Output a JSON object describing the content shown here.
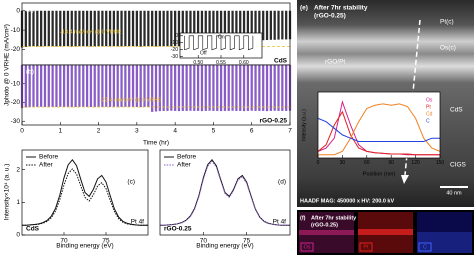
{
  "chart_data": [
    {
      "type": "bar",
      "panel": "(a)",
      "sample_label": "CdS",
      "ref_label": "-18.4 mA/cm² @ 0 VRHE",
      "hline": -18.4,
      "ylabel": "Jphoto @ 0 VRHE (mA/cm²)",
      "color": "#2a2a2a",
      "x": [
        0,
        0.1,
        0.2,
        0.3,
        0.4,
        0.5,
        0.6,
        0.7,
        0.8,
        0.9,
        1,
        1.1,
        1.2,
        1.3,
        1.4,
        1.5,
        1.6,
        1.7,
        1.8,
        1.9,
        2,
        2.1,
        2.2,
        2.3,
        2.4,
        2.5,
        2.6,
        2.7,
        2.8,
        2.9,
        3,
        3.1,
        3.2,
        3.3,
        3.4,
        3.5,
        3.6,
        3.7,
        3.8,
        3.9,
        4,
        4.1,
        4.2,
        4.3,
        4.4,
        4.5,
        4.6,
        4.7,
        4.8,
        4.9,
        5,
        5.1,
        5.2,
        5.3,
        5.4,
        5.5,
        5.6,
        5.7,
        5.8,
        5.9,
        6,
        6.1,
        6.2,
        6.3,
        6.4,
        6.5,
        6.6,
        6.7,
        6.8,
        6.9,
        7
      ],
      "values": [
        -19.0,
        -18.6,
        -18.5,
        -18.4,
        -18.5,
        -18.4,
        -18.3,
        -18.4,
        -18.5,
        -18.4,
        -18.4,
        -18.3,
        -18.4,
        -18.5,
        -18.4,
        -18.4,
        -18.3,
        -18.4,
        -18.4,
        -18.5,
        -18.4,
        -18.4,
        -18.3,
        -18.4,
        -18.4,
        -18.5,
        -18.4,
        -18.3,
        -18.4,
        -18.4,
        -18.4,
        -18.5,
        -18.4,
        -18.3,
        -18.4,
        -18.4,
        -18.4,
        -18.3,
        -18.4,
        -18.4,
        -18.3,
        -18.2,
        -18.0,
        -17.8,
        -17.6,
        -17.4,
        -17.2,
        -17.0,
        -16.8,
        -16.6,
        -16.5,
        -16.4,
        -16.3,
        -16.2,
        -16.1,
        -16.0,
        -15.9,
        -15.8,
        -15.7,
        -15.6,
        -15.5,
        -15.4,
        -15.3,
        -15.2,
        -15.1,
        -15.0,
        -15.0,
        -14.9,
        -14.8,
        -14.8,
        -14.7
      ],
      "xlim": [
        0,
        7
      ],
      "ylim": [
        -28,
        4
      ],
      "yticks": [
        0,
        -10,
        -20
      ]
    },
    {
      "type": "bar",
      "panel": "(b)",
      "sample_label": "rGO-0.25",
      "ref_label": "-22.4 mA/cm² @ 0 VRHE",
      "hline": -22.4,
      "xlabel": "Time (hr)",
      "color": "#8a5cc7",
      "x": [
        0,
        0.1,
        0.2,
        0.3,
        0.4,
        0.5,
        0.6,
        0.7,
        0.8,
        0.9,
        1,
        1.1,
        1.2,
        1.3,
        1.4,
        1.5,
        1.6,
        1.7,
        1.8,
        1.9,
        2,
        2.1,
        2.2,
        2.3,
        2.4,
        2.5,
        2.6,
        2.7,
        2.8,
        2.9,
        3,
        3.1,
        3.2,
        3.3,
        3.4,
        3.5,
        3.6,
        3.7,
        3.8,
        3.9,
        4,
        4.1,
        4.2,
        4.3,
        4.4,
        4.5,
        4.6,
        4.7,
        4.8,
        4.9,
        5,
        5.1,
        5.2,
        5.3,
        5.4,
        5.5,
        5.6,
        5.7,
        5.8,
        5.9,
        6,
        6.1,
        6.2,
        6.3,
        6.4,
        6.5,
        6.6,
        6.7,
        6.8,
        6.9,
        7
      ],
      "values": [
        -23.0,
        -22.6,
        -22.5,
        -22.4,
        -22.4,
        -22.3,
        -22.4,
        -22.5,
        -22.4,
        -22.4,
        -22.3,
        -22.4,
        -22.4,
        -22.5,
        -22.4,
        -22.4,
        -22.3,
        -22.4,
        -22.4,
        -22.5,
        -22.4,
        -22.4,
        -22.3,
        -22.4,
        -22.4,
        -22.5,
        -22.4,
        -22.3,
        -22.4,
        -22.4,
        -22.4,
        -22.5,
        -22.4,
        -22.4,
        -25.0,
        -24.8,
        -24.6,
        -24.5,
        -24.5,
        -24.4,
        -24.5,
        -24.6,
        -24.5,
        -24.5,
        -24.4,
        -24.5,
        -24.5,
        -24.6,
        -24.5,
        -24.4,
        -24.5,
        -24.5,
        -24.6,
        -24.5,
        -24.5,
        -24.4,
        -24.5,
        -24.5,
        -24.6,
        -24.5,
        -24.4,
        -24.5,
        -24.5,
        -24.5,
        -24.6,
        -24.5,
        -24.4,
        -24.5,
        -24.5,
        -24.5,
        -24.4
      ],
      "xlim": [
        0,
        7
      ],
      "ylim": [
        -32,
        0
      ],
      "xticks": [
        0,
        1,
        2,
        3,
        4,
        5,
        6,
        7
      ],
      "yticks": [
        -10,
        -20,
        -30
      ]
    },
    {
      "type": "line",
      "on_label": "On",
      "off_label": "Off",
      "x": [
        0.47,
        0.47,
        0.48,
        0.48,
        0.49,
        0.49,
        0.5,
        0.5,
        0.51,
        0.51,
        0.52,
        0.52,
        0.53,
        0.53,
        0.54,
        0.54,
        0.55,
        0.55,
        0.56,
        0.56,
        0.57,
        0.57,
        0.58,
        0.58,
        0.59,
        0.59,
        0.6,
        0.6,
        0.61,
        0.61,
        0.62,
        0.62
      ],
      "series": [
        {
          "color": "#111111",
          "values": [
            0,
            -20,
            -18,
            0,
            0,
            -20,
            -18,
            0,
            0,
            -20,
            -18,
            0,
            0,
            -20,
            -18,
            0,
            0,
            -20,
            -18,
            0,
            0,
            -20,
            -18,
            0,
            0,
            -20,
            -18,
            0,
            0,
            -20,
            -18,
            0
          ]
        }
      ],
      "xlim": [
        0.46,
        0.64
      ],
      "ylim": [
        -32,
        4
      ],
      "xticks": [
        {
          "value": 0.5,
          "label": "0.50"
        },
        {
          "value": 0.55,
          "label": "0.55"
        },
        {
          "value": 0.6,
          "label": "0.60"
        }
      ],
      "yticks": [
        0,
        -10,
        -20,
        -30
      ]
    },
    {
      "type": "line",
      "panel": "(c)",
      "sample_label": "CdS",
      "peak_label": "Pt 4f",
      "xlabel": "Binding energy (eV)",
      "ylabel": "Intensity×10⁴ (a. u.)",
      "x": [
        65,
        65.5,
        66,
        66.5,
        67,
        67.5,
        68,
        68.5,
        69,
        69.5,
        70,
        70.5,
        71,
        71.5,
        72,
        72.5,
        73,
        73.5,
        74,
        74.5,
        75,
        75.5,
        76,
        76.5,
        77,
        77.5,
        78,
        78.5,
        79,
        79.5,
        80
      ],
      "series": [
        {
          "name": "Before",
          "color": "#111111",
          "values": [
            0.3,
            0.3,
            0.31,
            0.32,
            0.34,
            0.38,
            0.45,
            0.58,
            0.82,
            1.22,
            1.75,
            2.15,
            2.3,
            2.12,
            1.7,
            1.3,
            1.18,
            1.4,
            1.72,
            1.82,
            1.62,
            1.2,
            0.8,
            0.55,
            0.42,
            0.36,
            0.33,
            0.31,
            0.3,
            0.3,
            0.3
          ]
        },
        {
          "name": "After",
          "color": "#111111",
          "dash": true,
          "values": [
            0.3,
            0.3,
            0.31,
            0.32,
            0.33,
            0.36,
            0.42,
            0.53,
            0.74,
            1.08,
            1.53,
            1.88,
            2.02,
            1.86,
            1.5,
            1.15,
            1.04,
            1.23,
            1.5,
            1.6,
            1.42,
            1.06,
            0.72,
            0.5,
            0.39,
            0.34,
            0.32,
            0.31,
            0.3,
            0.3,
            0.3
          ]
        }
      ],
      "xlim": [
        65,
        80
      ],
      "ylim": [
        0,
        2.6
      ],
      "xticks": [
        70,
        75
      ],
      "yticks": [
        0,
        1,
        2
      ]
    },
    {
      "type": "line",
      "panel": "(d)",
      "sample_label": "rGO-0.25",
      "peak_label": "Pt 4f",
      "xlabel": "Binding energy (eV)",
      "x": [
        65,
        65.5,
        66,
        66.5,
        67,
        67.5,
        68,
        68.5,
        69,
        69.5,
        70,
        70.5,
        71,
        71.5,
        72,
        72.5,
        73,
        73.5,
        74,
        74.5,
        75,
        75.5,
        76,
        76.5,
        77,
        77.5,
        78,
        78.5,
        79,
        79.5,
        80
      ],
      "series": [
        {
          "name": "Before",
          "color": "#111111",
          "values": [
            0.3,
            0.3,
            0.31,
            0.32,
            0.34,
            0.38,
            0.45,
            0.58,
            0.82,
            1.22,
            1.75,
            2.15,
            2.3,
            2.12,
            1.7,
            1.3,
            1.18,
            1.4,
            1.72,
            1.82,
            1.62,
            1.2,
            0.8,
            0.55,
            0.42,
            0.36,
            0.33,
            0.31,
            0.3,
            0.3,
            0.3
          ]
        },
        {
          "name": "After",
          "color": "#8a5cc7",
          "dash": true,
          "values": [
            0.3,
            0.3,
            0.31,
            0.32,
            0.34,
            0.37,
            0.44,
            0.56,
            0.79,
            1.18,
            1.7,
            2.1,
            2.25,
            2.08,
            1.66,
            1.27,
            1.15,
            1.37,
            1.68,
            1.78,
            1.58,
            1.17,
            0.78,
            0.54,
            0.41,
            0.35,
            0.33,
            0.31,
            0.3,
            0.3,
            0.3
          ]
        }
      ],
      "xlim": [
        65,
        80
      ],
      "ylim": [
        0,
        2.6
      ],
      "xticks": [
        70,
        75
      ]
    },
    {
      "type": "line",
      "xlabel": "Position (nm)",
      "ylabel": "Intensity (a.u.)",
      "x": [
        0,
        10,
        20,
        30,
        40,
        50,
        60,
        70,
        80,
        90,
        100,
        110,
        120,
        130,
        140,
        150
      ],
      "series": [
        {
          "name": "Os",
          "color": "#d0208a",
          "values": [
            0.1,
            0.15,
            0.3,
            0.85,
            0.5,
            0.2,
            0.1,
            0.08,
            0.07,
            0.06,
            0.06,
            0.05,
            0.05,
            0.05,
            0.05,
            0.05
          ]
        },
        {
          "name": "Pt",
          "color": "#e02020",
          "values": [
            0.1,
            0.2,
            0.5,
            0.7,
            0.35,
            0.15,
            0.1,
            0.08,
            0.07,
            0.06,
            0.06,
            0.06,
            0.05,
            0.05,
            0.05,
            0.05
          ]
        },
        {
          "name": "Cd",
          "color": "#f08020",
          "values": [
            0.05,
            0.05,
            0.05,
            0.1,
            0.3,
            0.55,
            0.75,
            0.8,
            0.82,
            0.8,
            0.82,
            0.78,
            0.6,
            0.3,
            0.15,
            0.1
          ]
        },
        {
          "name": "C",
          "color": "#2040e0",
          "values": [
            0.6,
            0.55,
            0.45,
            0.35,
            0.3,
            0.25,
            0.25,
            0.25,
            0.25,
            0.25,
            0.25,
            0.25,
            0.25,
            0.25,
            0.3,
            0.3
          ]
        }
      ],
      "xlim": [
        0,
        150
      ],
      "ylim": [
        0,
        1
      ],
      "xticks": [
        0,
        30,
        60,
        90,
        120,
        150
      ]
    }
  ],
  "tem_image": {
    "panel": "(e)",
    "title": "After 7hr stability",
    "subtitle": "(rGO-0.25)",
    "layers": [
      "Pt(c)",
      "Os(c)",
      "rGO/Pt",
      "CdS",
      "CIGS"
    ],
    "scale_bar": "40 nm",
    "footer": "HAADF  MAG: 450000 x  HV: 200.0 kV"
  },
  "eds_maps": {
    "panel": "(f)",
    "title": "After 7hr stability",
    "subtitle": "(rGO-0.25)",
    "elements": [
      "Os",
      "Pt",
      "C"
    ]
  }
}
